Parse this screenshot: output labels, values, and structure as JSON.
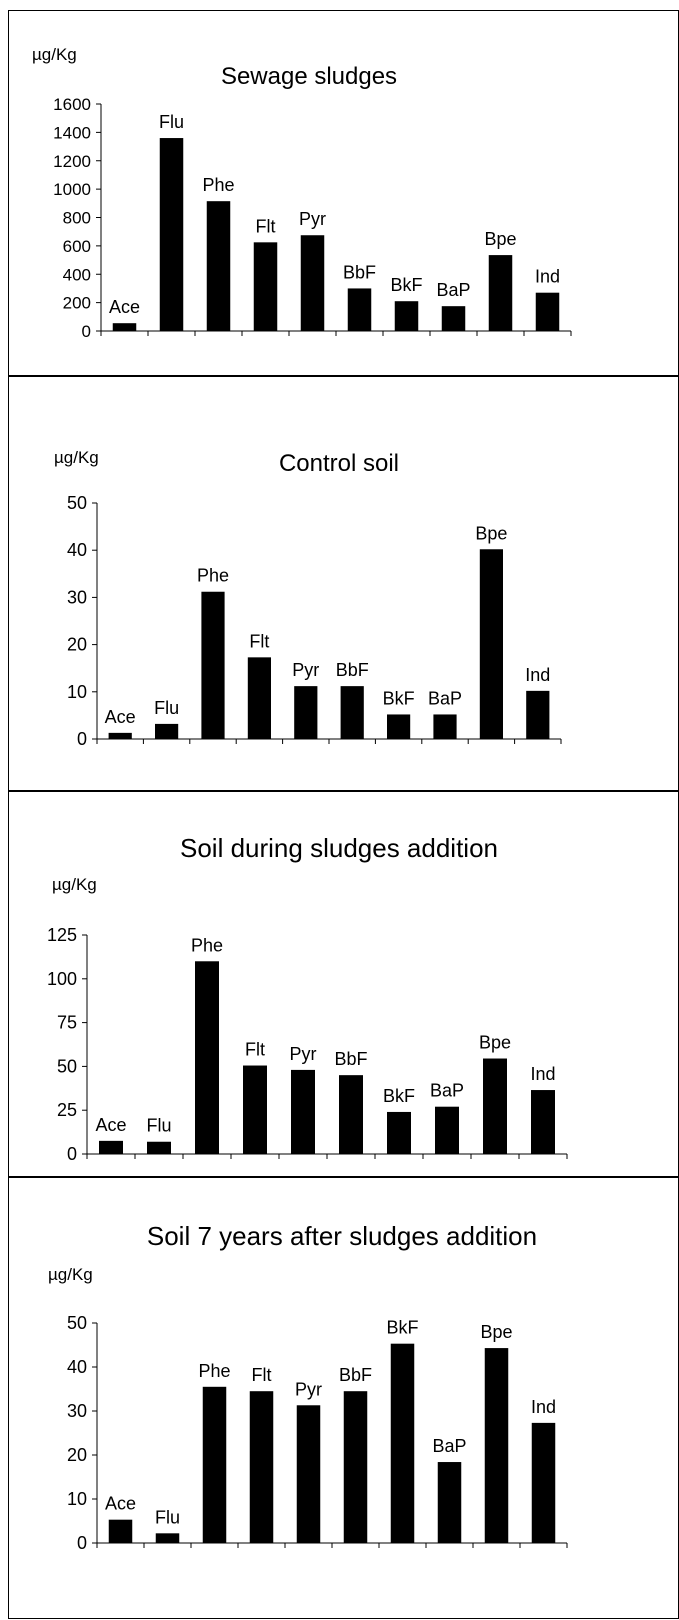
{
  "chart_data": [
    {
      "type": "bar",
      "title": "Sewage sludges",
      "ylabel": "µg/Kg",
      "ylim": [
        0,
        1600
      ],
      "yticks": [
        0,
        200,
        400,
        600,
        800,
        1000,
        1200,
        1400,
        1600
      ],
      "categories": [
        "Ace",
        "Flu",
        "Phe",
        "Flt",
        "Pyr",
        "BbF",
        "BkF",
        "BaP",
        "Bpe",
        "Ind"
      ],
      "values": [
        55,
        1360,
        915,
        625,
        675,
        300,
        210,
        175,
        535,
        270
      ],
      "bar_color": "#000000"
    },
    {
      "type": "bar",
      "title": "Control soil",
      "ylabel": "µg/Kg",
      "ylim": [
        0,
        50
      ],
      "yticks": [
        0,
        10,
        20,
        30,
        40,
        50
      ],
      "categories": [
        "Ace",
        "Flu",
        "Phe",
        "Flt",
        "Pyr",
        "BbF",
        "BkF",
        "BaP",
        "Bpe",
        "Ind"
      ],
      "values": [
        1.3,
        3.2,
        31.2,
        17.3,
        11.2,
        11.2,
        5.2,
        5.2,
        40.2,
        10.2
      ],
      "bar_color": "#000000"
    },
    {
      "type": "bar",
      "title": "Soil during sludges addition",
      "ylabel": "µg/Kg",
      "ylim": [
        0,
        125
      ],
      "yticks": [
        0,
        25,
        50,
        75,
        100,
        125
      ],
      "categories": [
        "Ace",
        "Flu",
        "Phe",
        "Flt",
        "Pyr",
        "BbF",
        "BkF",
        "BaP",
        "Bpe",
        "Ind"
      ],
      "values": [
        7.5,
        7,
        110,
        50.5,
        48,
        45,
        24,
        27,
        54.5,
        36.5
      ],
      "bar_color": "#000000"
    },
    {
      "type": "bar",
      "title": "Soil 7 years after sludges addition",
      "ylabel": "µg/Kg",
      "ylim": [
        0,
        50
      ],
      "yticks": [
        0,
        10,
        20,
        30,
        40,
        50
      ],
      "categories": [
        "Ace",
        "Flu",
        "Phe",
        "Flt",
        "Pyr",
        "BbF",
        "BkF",
        "BaP",
        "Bpe",
        "Ind"
      ],
      "values": [
        5.3,
        2.2,
        35.5,
        34.5,
        31.3,
        34.5,
        45.3,
        18.4,
        44.3,
        27.3
      ],
      "bar_color": "#000000"
    }
  ]
}
